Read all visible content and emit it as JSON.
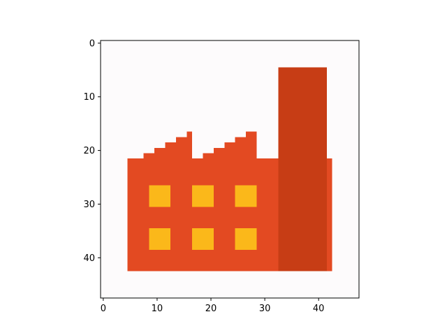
{
  "chart_data": {
    "type": "heatmap",
    "title": "",
    "xlabel": "",
    "ylabel": "",
    "xlim": [
      -0.5,
      47.5
    ],
    "ylim": [
      47.5,
      -0.5
    ],
    "y_axis_inverted": true,
    "grid": false,
    "x_ticks": [
      0,
      10,
      20,
      30,
      40
    ],
    "y_ticks": [
      0,
      10,
      20,
      30,
      40
    ],
    "x_tick_labels": [
      "0",
      "10",
      "20",
      "30",
      "40"
    ],
    "y_tick_labels": [
      "0",
      "10",
      "20",
      "30",
      "40"
    ],
    "image_size": [
      48,
      48
    ],
    "colors": {
      "background": "#fdfbfc",
      "building": "#e34a22",
      "chimney": "#c73d15",
      "window": "#fbb81a"
    },
    "regions": [
      {
        "name": "building-body",
        "color": "building",
        "x": [
          5,
          32
        ],
        "y": [
          22,
          42
        ]
      },
      {
        "name": "chimney",
        "color": "chimney",
        "x": [
          33,
          41
        ],
        "y": [
          5,
          42
        ]
      },
      {
        "name": "chimney-side",
        "color": "building",
        "x": [
          42,
          42
        ],
        "y": [
          22,
          42
        ]
      },
      {
        "name": "roof-step",
        "color": "building",
        "x": [
          8,
          9
        ],
        "y": [
          21,
          21
        ]
      },
      {
        "name": "roof-step",
        "color": "building",
        "x": [
          10,
          11
        ],
        "y": [
          20,
          21
        ]
      },
      {
        "name": "roof-step",
        "color": "building",
        "x": [
          12,
          13
        ],
        "y": [
          19,
          21
        ]
      },
      {
        "name": "roof-step",
        "color": "building",
        "x": [
          14,
          15
        ],
        "y": [
          18,
          21
        ]
      },
      {
        "name": "roof-step",
        "color": "building",
        "x": [
          16,
          16
        ],
        "y": [
          17,
          21
        ]
      },
      {
        "name": "roof-step",
        "color": "building",
        "x": [
          19,
          20
        ],
        "y": [
          21,
          21
        ]
      },
      {
        "name": "roof-step",
        "color": "building",
        "x": [
          21,
          22
        ],
        "y": [
          20,
          21
        ]
      },
      {
        "name": "roof-step",
        "color": "building",
        "x": [
          23,
          24
        ],
        "y": [
          19,
          21
        ]
      },
      {
        "name": "roof-step",
        "color": "building",
        "x": [
          25,
          26
        ],
        "y": [
          18,
          21
        ]
      },
      {
        "name": "roof-step",
        "color": "building",
        "x": [
          27,
          28
        ],
        "y": [
          17,
          21
        ]
      },
      {
        "name": "window",
        "color": "window",
        "x": [
          9,
          12
        ],
        "y": [
          27,
          30
        ]
      },
      {
        "name": "window",
        "color": "window",
        "x": [
          17,
          20
        ],
        "y": [
          27,
          30
        ]
      },
      {
        "name": "window",
        "color": "window",
        "x": [
          25,
          28
        ],
        "y": [
          27,
          30
        ]
      },
      {
        "name": "window",
        "color": "window",
        "x": [
          9,
          12
        ],
        "y": [
          35,
          38
        ]
      },
      {
        "name": "window",
        "color": "window",
        "x": [
          17,
          20
        ],
        "y": [
          35,
          38
        ]
      },
      {
        "name": "window",
        "color": "window",
        "x": [
          25,
          28
        ],
        "y": [
          35,
          38
        ]
      }
    ]
  }
}
